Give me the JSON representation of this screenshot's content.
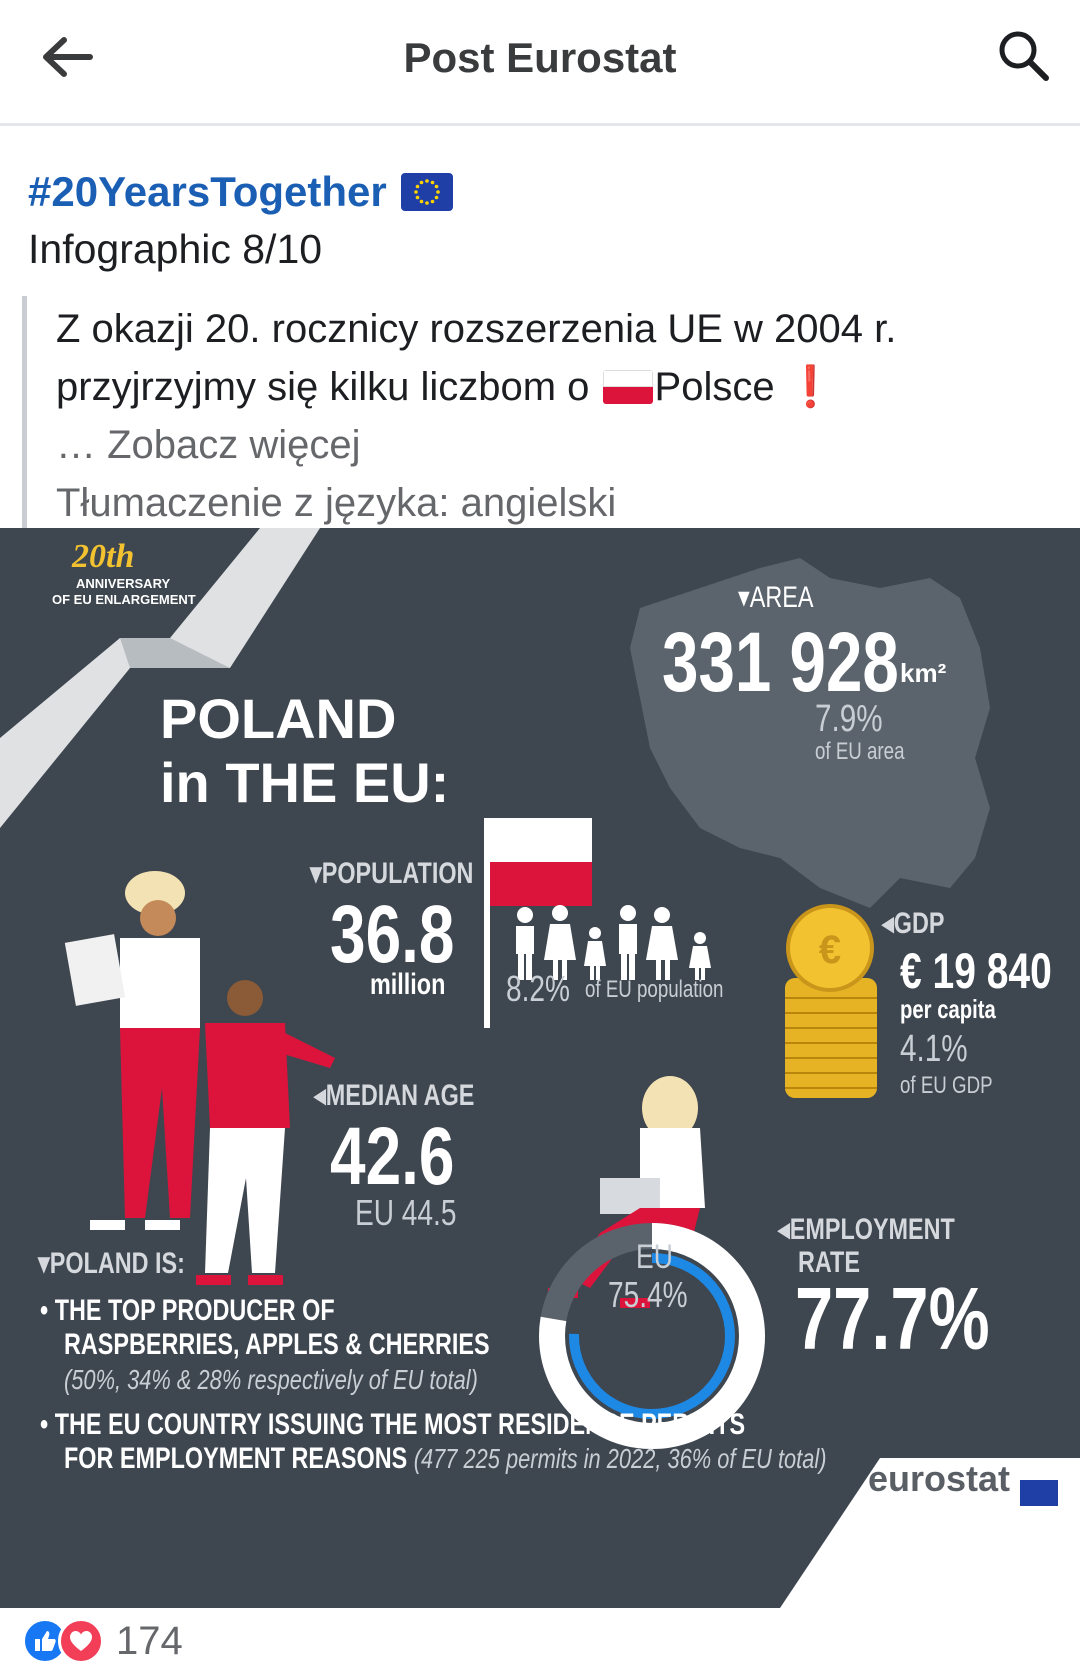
{
  "header": {
    "title": "Post Eurostat",
    "back_icon": "arrow-left-icon",
    "search_icon": "search-icon"
  },
  "post": {
    "hashtag": "#20YearsTogether",
    "subtitle": "Infographic 8/10",
    "quote_line1": "Z okazji 20. rocznicy rozszerzenia UE w 2004 r.",
    "quote_line2_pre": "przyjrzyjmy się kilku liczbom o",
    "quote_line2_post": "Polsce",
    "see_more": "… Zobacz więcej",
    "translated": "Tłumaczenie z języka: angielski"
  },
  "infographic": {
    "anniversary_script": "20th",
    "anniversary_line1": "ANNIVERSARY",
    "anniversary_line2": "OF EU ENLARGEMENT",
    "title_line1": "POLAND",
    "title_line2": "in THE EU:",
    "area": {
      "label": "AREA",
      "value": "331 928",
      "unit": "km²",
      "share": "7.9%",
      "share_note": "of EU area"
    },
    "population": {
      "label": "POPULATION",
      "value": "36.8",
      "unit": "million",
      "share": "8.2%",
      "share_note": "of EU population"
    },
    "gdp": {
      "label": "GDP",
      "value": "€ 19 840",
      "unit": "per capita",
      "share": "4.1%",
      "share_note": "of EU GDP"
    },
    "median_age": {
      "label": "MEDIAN AGE",
      "value": "42.6",
      "eu": "EU 44.5"
    },
    "employment": {
      "label_line1": "EMPLOYMENT",
      "label_line2": "RATE",
      "value": "77.7%",
      "eu_label": "EU",
      "eu_value": "75.4%",
      "ring_fraction": 0.777
    },
    "poland_is": {
      "label": "POLAND IS:",
      "bullet1_line1": "THE TOP PRODUCER OF",
      "bullet1_line2": "RASPBERRIES, APPLES & CHERRIES",
      "bullet1_note": "(50%, 34% & 28% respectively of EU total)",
      "bullet2_line1": "THE EU COUNTRY ISSUING THE MOST RESIDENCE PERMITS",
      "bullet2_line2": "FOR EMPLOYMENT REASONS",
      "bullet2_note": "(477 225 permits in 2022, 36% of EU total)"
    },
    "brand": "eurostat",
    "colors": {
      "background": "#3e464f",
      "red": "#dc143c",
      "blue": "#1e88e5",
      "gold": "#f2c230"
    }
  },
  "reactions": {
    "count": "174"
  }
}
